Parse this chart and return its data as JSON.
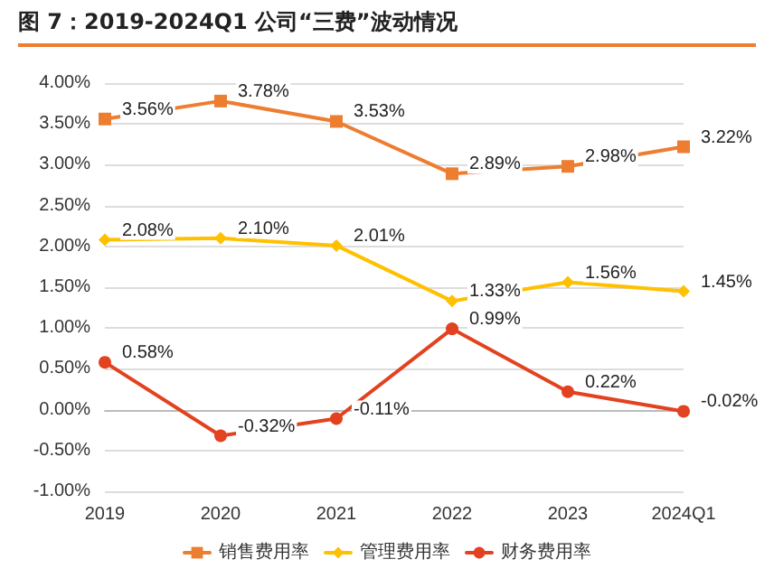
{
  "chart_data": {
    "type": "line",
    "title": "图 7：2019-2024Q1 公司“三费”波动情况",
    "categories": [
      "2019",
      "2020",
      "2021",
      "2022",
      "2023",
      "2024Q1"
    ],
    "series": [
      {
        "name": "销售费用率",
        "color": "#ed7d31",
        "marker": "square",
        "values": [
          3.56,
          3.78,
          3.53,
          2.89,
          2.98,
          3.22
        ],
        "value_labels": [
          "3.56%",
          "3.78%",
          "3.53%",
          "2.89%",
          "2.98%",
          "3.22%"
        ]
      },
      {
        "name": "管理费用率",
        "color": "#ffc000",
        "marker": "diamond",
        "values": [
          2.08,
          2.1,
          2.01,
          1.33,
          1.56,
          1.45
        ],
        "value_labels": [
          "2.08%",
          "2.10%",
          "2.01%",
          "1.33%",
          "1.56%",
          "1.45%"
        ]
      },
      {
        "name": "财务费用率",
        "color": "#e2421f",
        "marker": "circle",
        "values": [
          0.58,
          -0.32,
          -0.11,
          0.99,
          0.22,
          -0.02
        ],
        "value_labels": [
          "0.58%",
          "-0.32%",
          "-0.11%",
          "0.99%",
          "0.22%",
          "-0.02%"
        ]
      }
    ],
    "ylim": [
      -1,
      4
    ],
    "yticks": [
      {
        "value": -1,
        "label": "-1.00%"
      },
      {
        "value": -0.5,
        "label": "-0.50%"
      },
      {
        "value": 0,
        "label": "0.00%"
      },
      {
        "value": 0.5,
        "label": "0.50%"
      },
      {
        "value": 1,
        "label": "1.00%"
      },
      {
        "value": 1.5,
        "label": "1.50%"
      },
      {
        "value": 2,
        "label": "2.00%"
      },
      {
        "value": 2.5,
        "label": "2.50%"
      },
      {
        "value": 3,
        "label": "3.00%"
      },
      {
        "value": 3.5,
        "label": "3.50%"
      },
      {
        "value": 4,
        "label": "4.00%"
      }
    ],
    "grid": "y",
    "legend": "bottom",
    "line_style": "solid"
  }
}
